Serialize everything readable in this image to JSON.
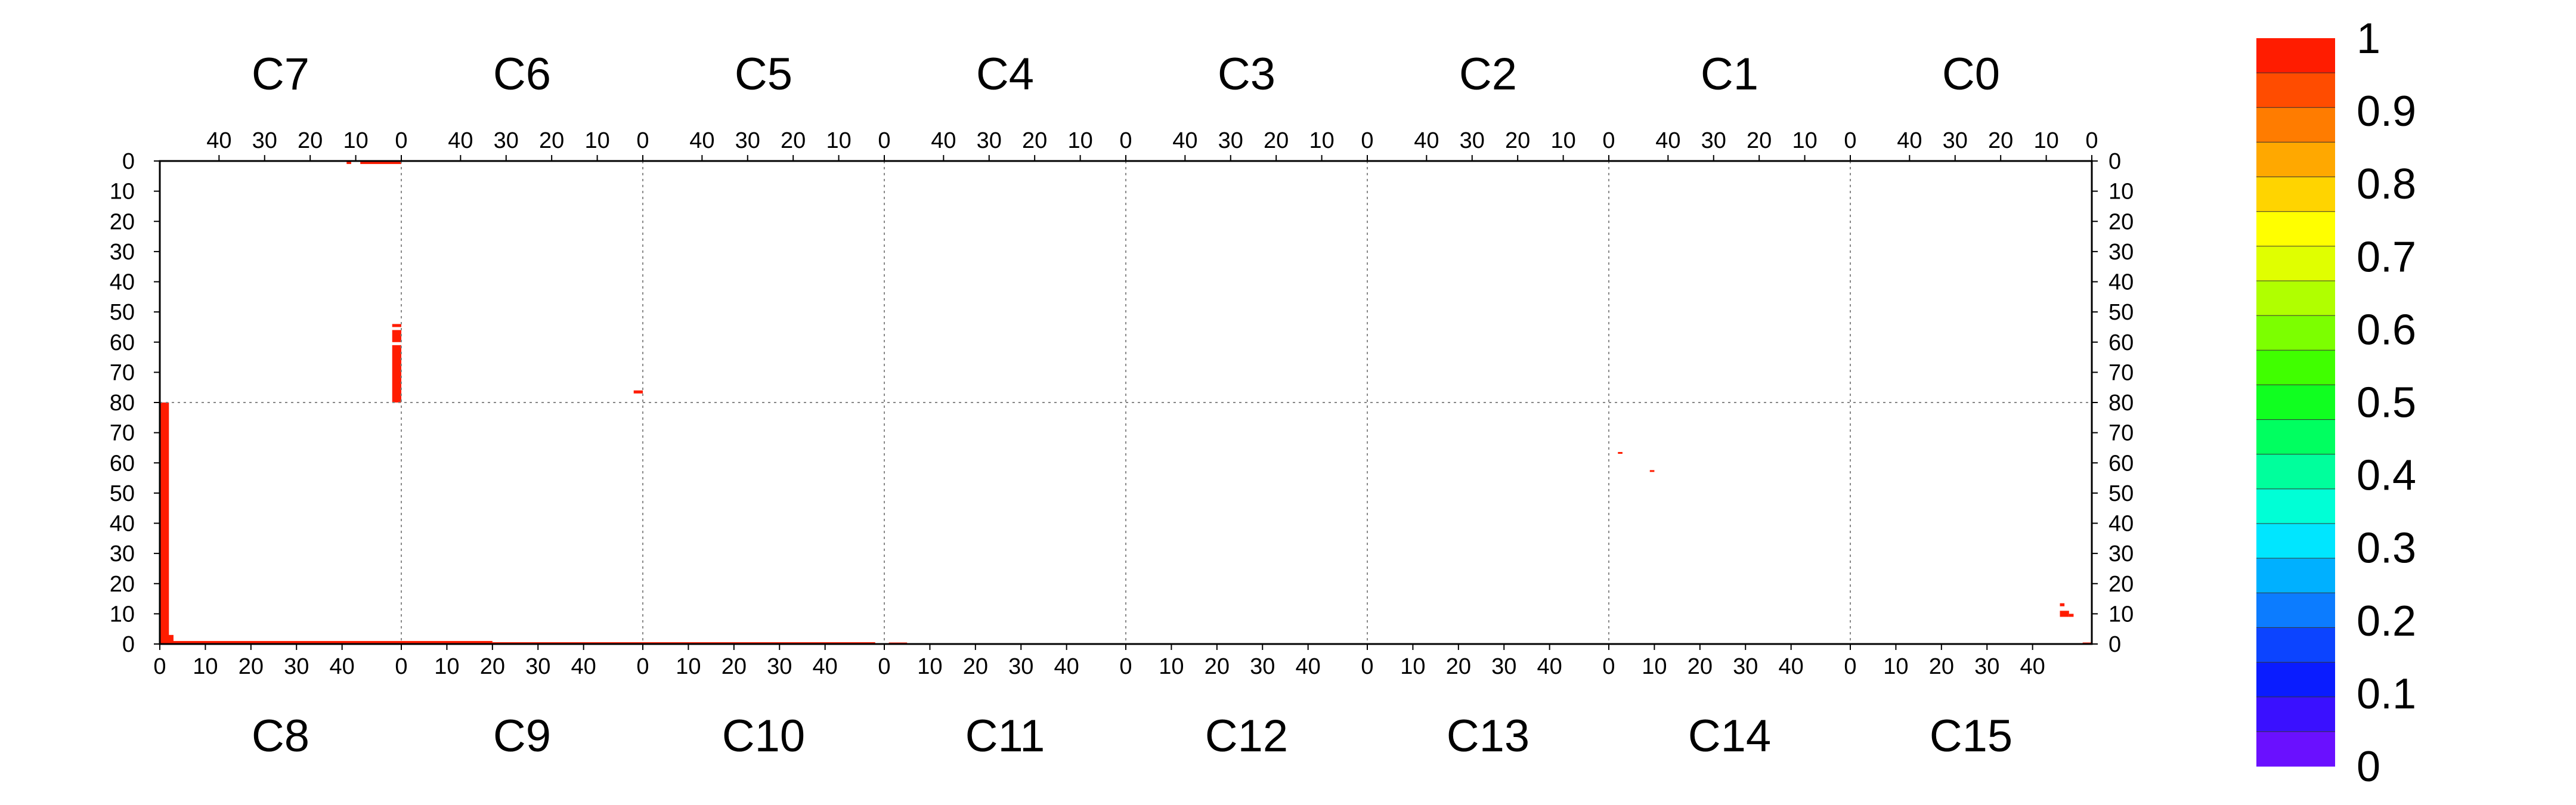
{
  "chart_data": {
    "type": "heatmap",
    "title": "",
    "top_panels": [
      "C7",
      "C6",
      "C5",
      "C4",
      "C3",
      "C2",
      "C1",
      "C0"
    ],
    "bottom_panels": [
      "C8",
      "C9",
      "C10",
      "C11",
      "C12",
      "C13",
      "C14",
      "C15"
    ],
    "x_tick_labels": [
      "0",
      "10",
      "20",
      "30",
      "40"
    ],
    "y_tick_labels_top": [
      "0",
      "10",
      "20",
      "30",
      "40",
      "50",
      "60",
      "70",
      "80"
    ],
    "y_tick_labels_bottom": [
      "80",
      "70",
      "60",
      "50",
      "40",
      "30",
      "20",
      "10",
      "0"
    ],
    "x_range_per_panel": [
      0,
      53
    ],
    "y_range_per_half": [
      0,
      80
    ],
    "grid": true,
    "colorbar": {
      "ticks": [
        "0",
        "0.1",
        "0.2",
        "0.3",
        "0.4",
        "0.5",
        "0.6",
        "0.7",
        "0.8",
        "0.9",
        "1"
      ],
      "range": [
        0,
        1
      ],
      "colors": [
        "#6a10ff",
        "#3a10ff",
        "#0a1cff",
        "#0c44ff",
        "#0c7cff",
        "#00b0ff",
        "#00e6ff",
        "#00ffd6",
        "#00ff9c",
        "#00ff60",
        "#10ff20",
        "#40ff00",
        "#7cff00",
        "#b0ff00",
        "#e0ff00",
        "#ffff00",
        "#ffd400",
        "#ffa800",
        "#ff7c00",
        "#ff4c00",
        "#ff1c00"
      ]
    },
    "cells": [
      {
        "half": "top",
        "panel": "C7",
        "x": [
          0,
          9
        ],
        "y": [
          0,
          1
        ],
        "value": 1
      },
      {
        "half": "top",
        "panel": "C7",
        "x": [
          11,
          12
        ],
        "y": [
          0,
          1
        ],
        "value": 1
      },
      {
        "half": "top",
        "panel": "C7",
        "x": [
          0,
          2
        ],
        "y": [
          54,
          55
        ],
        "value": 1
      },
      {
        "half": "top",
        "panel": "C7",
        "x": [
          0,
          2
        ],
        "y": [
          56,
          60
        ],
        "value": 1
      },
      {
        "half": "top",
        "panel": "C7",
        "x": [
          0,
          2
        ],
        "y": [
          61,
          80
        ],
        "value": 1
      },
      {
        "half": "top",
        "panel": "C6",
        "x": [
          0,
          2
        ],
        "y": [
          76,
          77
        ],
        "value": 1
      },
      {
        "half": "bottom",
        "panel": "C8",
        "x": [
          0,
          2
        ],
        "y": [
          0,
          80
        ],
        "value": 1
      },
      {
        "half": "bottom",
        "panel": "C8",
        "x": [
          0,
          3
        ],
        "y": [
          0,
          3
        ],
        "value": 1
      },
      {
        "half": "bottom",
        "panel": "C8",
        "x": [
          0,
          53
        ],
        "y": [
          0,
          1
        ],
        "value": 1
      },
      {
        "half": "bottom",
        "panel": "C9",
        "x": [
          0,
          20
        ],
        "y": [
          0,
          1
        ],
        "value": 1
      },
      {
        "half": "bottom",
        "panel": "C9",
        "x": [
          20,
          53
        ],
        "y": [
          0,
          0.6
        ],
        "value": 1
      },
      {
        "half": "bottom",
        "panel": "C10",
        "x": [
          0,
          51
        ],
        "y": [
          0,
          0.6
        ],
        "value": 1
      },
      {
        "half": "bottom",
        "panel": "C11",
        "x": [
          1,
          5
        ],
        "y": [
          0,
          0.5
        ],
        "value": 1
      },
      {
        "half": "bottom",
        "panel": "C14",
        "x": [
          2,
          3
        ],
        "y": [
          63,
          63.6
        ],
        "value": 1
      },
      {
        "half": "bottom",
        "panel": "C14",
        "x": [
          9,
          10
        ],
        "y": [
          57,
          57.6
        ],
        "value": 1
      },
      {
        "half": "bottom",
        "panel": "C15",
        "x": [
          46,
          47
        ],
        "y": [
          12.5,
          13.5
        ],
        "value": 1
      },
      {
        "half": "bottom",
        "panel": "C15",
        "x": [
          46,
          48
        ],
        "y": [
          9,
          11
        ],
        "value": 1
      },
      {
        "half": "bottom",
        "panel": "C15",
        "x": [
          48,
          49
        ],
        "y": [
          9,
          10
        ],
        "value": 1
      },
      {
        "half": "bottom",
        "panel": "C15",
        "x": [
          51,
          53
        ],
        "y": [
          0,
          0.5
        ],
        "value": 1
      }
    ]
  }
}
